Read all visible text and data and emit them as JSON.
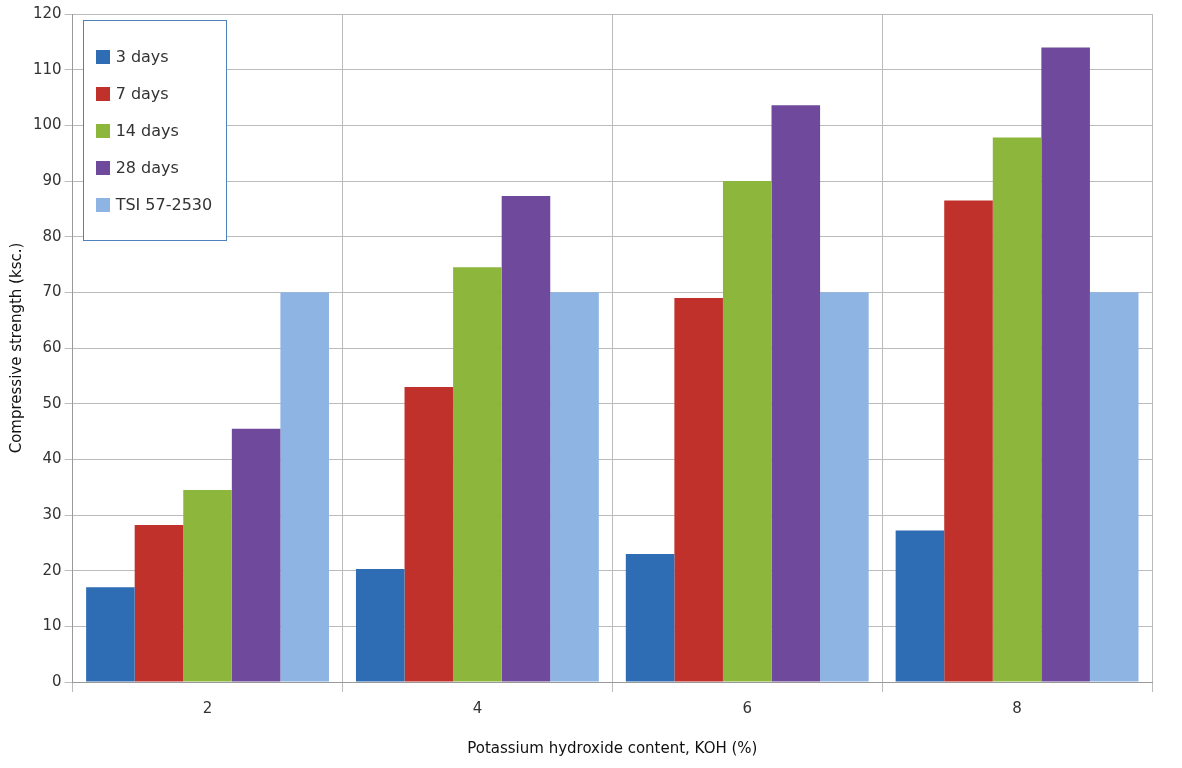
{
  "chart_data": {
    "type": "bar",
    "xlabel": "Potassium hydroxide content, KOH (%)",
    "ylabel": "Compressive strength (ksc.)",
    "categories": [
      "2",
      "4",
      "6",
      "8"
    ],
    "series": [
      {
        "name": "3 days",
        "color": "#2e6db4",
        "values": [
          17,
          20.3,
          23,
          27.2
        ]
      },
      {
        "name": "7 days",
        "color": "#c0312c",
        "values": [
          28.2,
          53,
          69,
          86.5
        ]
      },
      {
        "name": "14 days",
        "color": "#8cb63c",
        "values": [
          34.5,
          74.5,
          90,
          97.8
        ]
      },
      {
        "name": "28 days",
        "color": "#6f4a9c",
        "values": [
          45.5,
          87.3,
          103.6,
          114
        ]
      },
      {
        "name": "TSI 57-2530",
        "color": "#8eb4e3",
        "values": [
          70,
          70,
          70,
          70
        ]
      }
    ],
    "ylim": [
      0,
      120
    ],
    "yticks": [
      0,
      10,
      20,
      30,
      40,
      50,
      60,
      70,
      80,
      90,
      100,
      110,
      120
    ],
    "grid": true,
    "legend": "top left"
  }
}
